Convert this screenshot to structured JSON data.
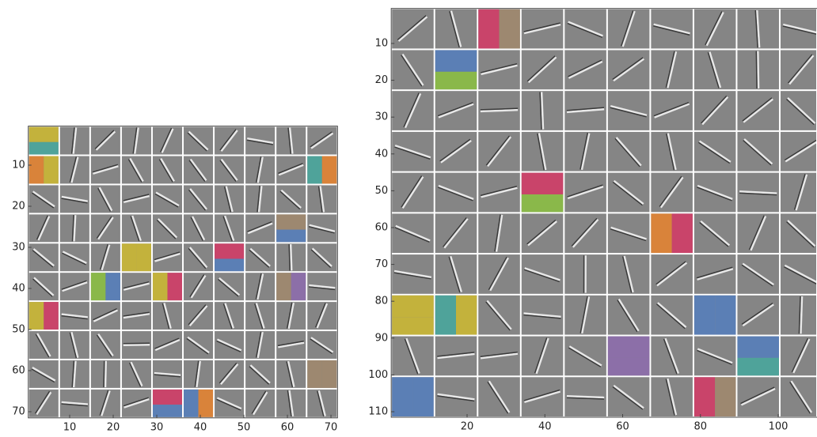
{
  "chart_data": [
    {
      "type": "image",
      "xlim": [
        0.5,
        71.5
      ],
      "ylim": [
        0.5,
        71.5
      ],
      "xticks": [
        10,
        20,
        30,
        40,
        50,
        60,
        70
      ],
      "yticks": [
        10,
        20,
        30,
        40,
        50,
        60,
        70
      ]
    },
    {
      "type": "image",
      "xlim": [
        0.5,
        111.5
      ],
      "ylim": [
        0.5,
        111.5
      ],
      "xticks": [
        20,
        40,
        60,
        80,
        100
      ],
      "yticks": [
        10,
        20,
        30,
        40,
        50,
        60,
        70,
        80,
        90,
        100,
        110
      ]
    }
  ]
}
